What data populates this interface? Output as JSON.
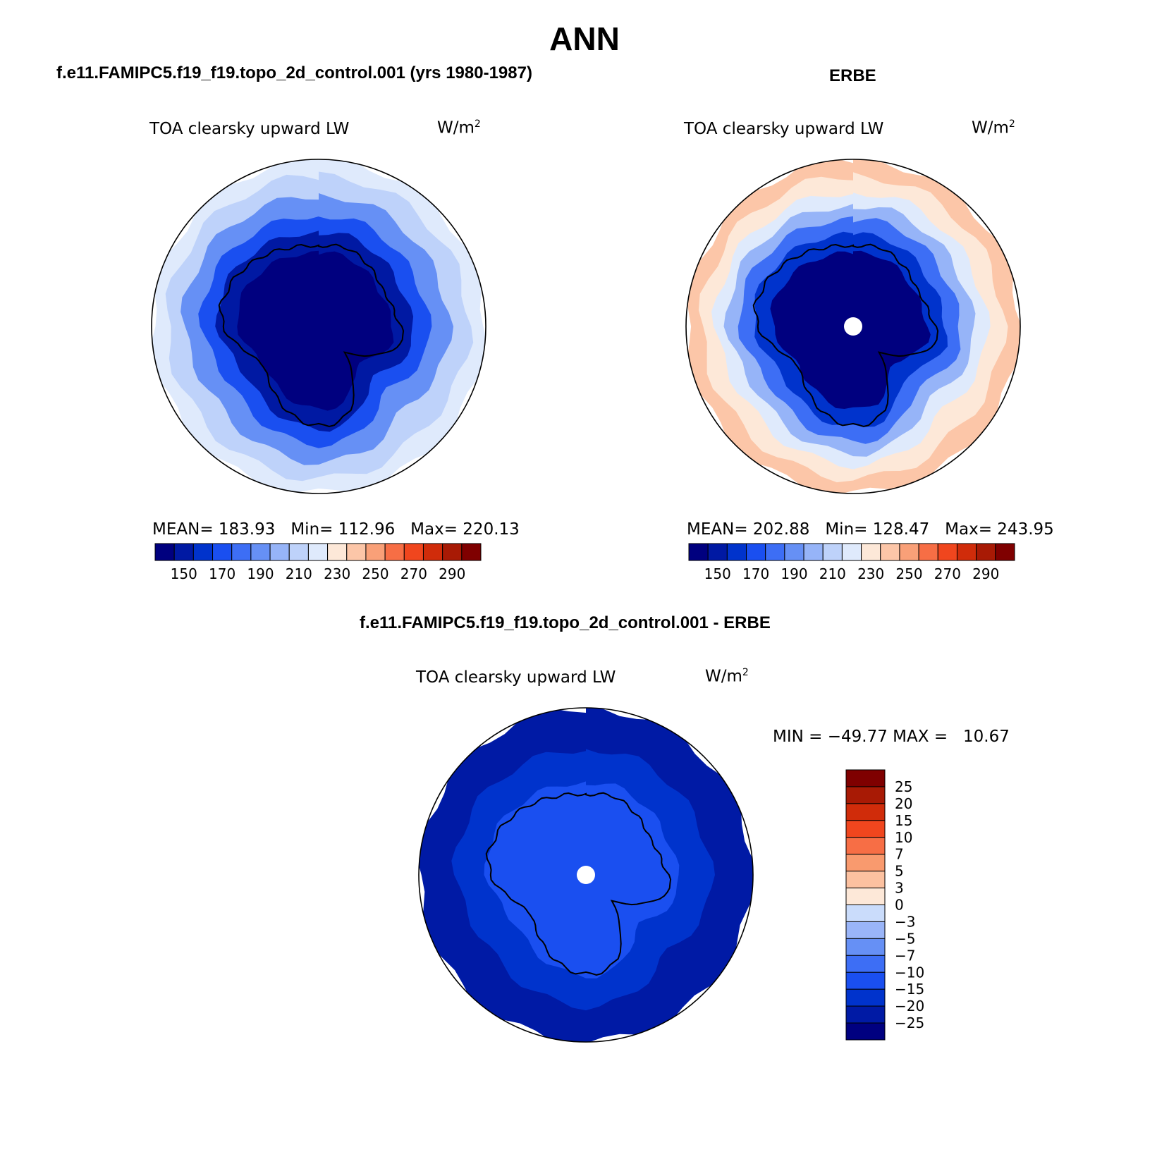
{
  "page": {
    "title": "ANN",
    "panel_left_title": "f.e11.FAMIPC5.f19_f19.topo_2d_control.001 (yrs 1980-1987)",
    "panel_right_title": "ERBE",
    "panel_bottom_title": "f.e11.FAMIPC5.f19_f19.topo_2d_control.001 - ERBE",
    "variable": "TOA clearsky upward LW",
    "units_base": "W/m",
    "units_exp": "2"
  },
  "chart_data": [
    {
      "type": "heatmap",
      "projection": "south-polar-stereographic",
      "title": "f.e11.FAMIPC5.f19_f19.topo_2d_control.001 (yrs 1980-1987)",
      "variable": "TOA clearsky upward LW",
      "units": "W/m2",
      "stats": {
        "mean_label": "MEAN=",
        "mean": "183.93",
        "min_label": "Min=",
        "min": "112.96",
        "max_label": "Max=",
        "max": "220.13"
      },
      "contour_levels": [
        140,
        150,
        160,
        170,
        180,
        190,
        200,
        210,
        220,
        230,
        240,
        250,
        260,
        270,
        280,
        290
      ],
      "colorbar_labels": [
        "150",
        "170",
        "190",
        "210",
        "230",
        "250",
        "270",
        "290"
      ],
      "field_rings": [
        {
          "radius_fraction": 0.44,
          "value": 135
        },
        {
          "radius_fraction": 0.56,
          "value": 145
        },
        {
          "radius_fraction": 0.66,
          "value": 165
        },
        {
          "radius_fraction": 0.78,
          "value": 185
        },
        {
          "radius_fraction": 0.9,
          "value": 205
        },
        {
          "radius_fraction": 1.0,
          "value": 215
        }
      ]
    },
    {
      "type": "heatmap",
      "projection": "south-polar-stereographic",
      "title": "ERBE",
      "variable": "TOA clearsky upward LW",
      "units": "W/m2",
      "stats": {
        "mean_label": "MEAN=",
        "mean": "202.88",
        "min_label": "Min=",
        "min": "128.47",
        "max_label": "Max=",
        "max": "243.95"
      },
      "contour_levels": [
        140,
        150,
        160,
        170,
        180,
        190,
        200,
        210,
        220,
        230,
        240,
        250,
        260,
        270,
        280,
        290
      ],
      "colorbar_labels": [
        "150",
        "170",
        "190",
        "210",
        "230",
        "250",
        "270",
        "290"
      ],
      "field_rings": [
        {
          "radius_fraction": 0.44,
          "value": 135
        },
        {
          "radius_fraction": 0.55,
          "value": 155
        },
        {
          "radius_fraction": 0.64,
          "value": 175
        },
        {
          "radius_fraction": 0.72,
          "value": 195
        },
        {
          "radius_fraction": 0.8,
          "value": 215
        },
        {
          "radius_fraction": 0.9,
          "value": 225
        },
        {
          "radius_fraction": 1.0,
          "value": 235
        }
      ],
      "missing_pole": true
    },
    {
      "type": "heatmap",
      "projection": "south-polar-stereographic",
      "title": "f.e11.FAMIPC5.f19_f19.topo_2d_control.001 - ERBE",
      "variable": "TOA clearsky upward LW",
      "units": "W/m2",
      "stats": {
        "min_label": "MIN =",
        "min": "−49.77",
        "max_label": "MAX =",
        "max": "10.67"
      },
      "contour_levels": [
        -25,
        -20,
        -15,
        -10,
        -7,
        -5,
        -3,
        0,
        3,
        5,
        7,
        10,
        15,
        20,
        25
      ],
      "colorbar_labels": [
        "25",
        "20",
        "15",
        "10",
        "7",
        "5",
        "3",
        "0",
        "−3",
        "−5",
        "−7",
        "−10",
        "−15",
        "−20",
        "−25"
      ],
      "field_rings": [
        {
          "radius_fraction": 0.55,
          "value": -12
        },
        {
          "radius_fraction": 0.75,
          "value": -18
        },
        {
          "radius_fraction": 1.0,
          "value": -22
        }
      ],
      "missing_pole": true
    }
  ],
  "colors": {
    "abs_colormap": [
      "#00007f",
      "#0019a3",
      "#0033cc",
      "#1a4ff0",
      "#3d6ef5",
      "#6690f5",
      "#96b4f8",
      "#bed2fa",
      "#dfeafc",
      "#fde8d8",
      "#fcc6a8",
      "#f9a078",
      "#f76e45",
      "#f0461e",
      "#d02c0a",
      "#a81a05",
      "#7f0000"
    ],
    "diff_colormap": [
      "#000080",
      "#001aa5",
      "#0033cc",
      "#1a4ff0",
      "#3d6ef5",
      "#6690f5",
      "#9ab5f8",
      "#cadcfb",
      "#fde8d8",
      "#fcc1a0",
      "#f99a6e",
      "#f76e45",
      "#f0461e",
      "#d02c0a",
      "#a81a05",
      "#7f0000"
    ],
    "coast": "#000000"
  }
}
